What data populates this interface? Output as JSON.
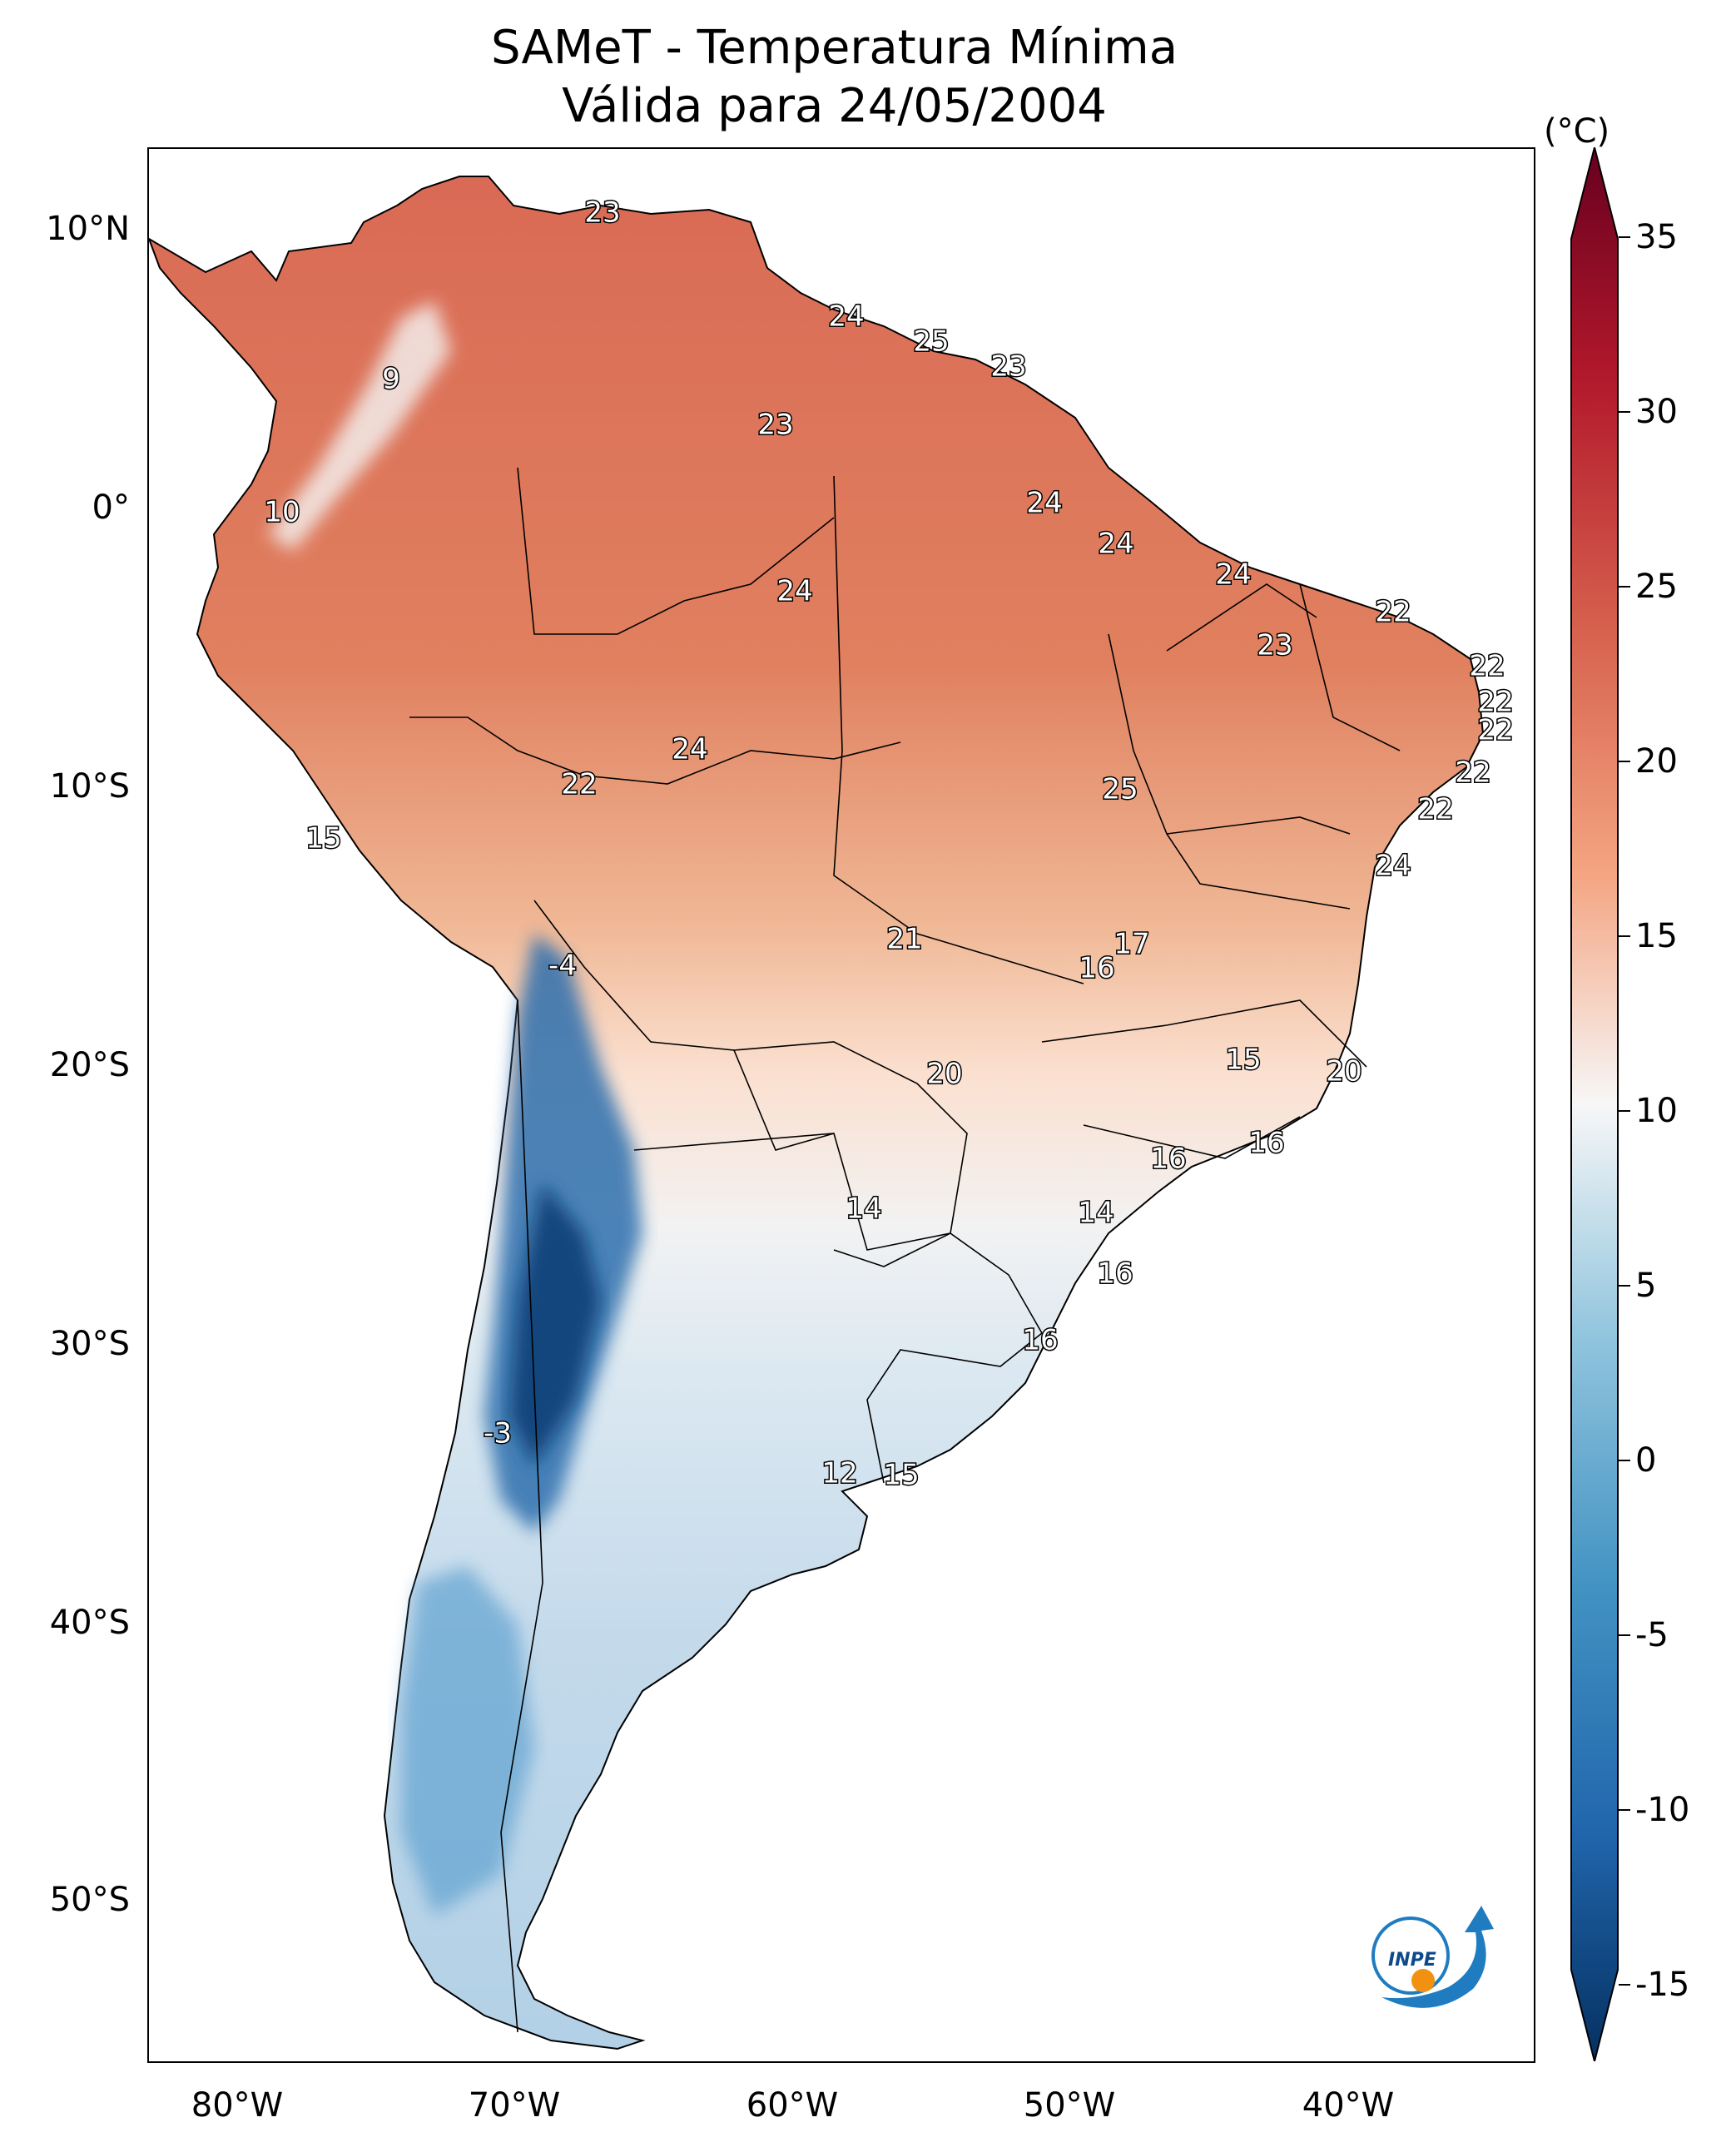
{
  "title": "SAMeT - Temperatura Mínima",
  "subtitle": "Válida para 24/05/2004",
  "latitude_labels": [
    "10°N",
    "0°",
    "10°S",
    "20°S",
    "30°S",
    "40°S",
    "50°S"
  ],
  "longitude_labels": [
    "80°W",
    "70°W",
    "60°W",
    "50°W",
    "40°W"
  ],
  "colorbar": {
    "unit": "(°C)",
    "ticks": [
      "35",
      "30",
      "25",
      "20",
      "15",
      "10",
      "5",
      "0",
      "-5",
      "-10",
      "-15"
    ],
    "range": [
      -17,
      37
    ],
    "colors": {
      "max": "#67001f",
      "high": "#d6604d",
      "mid": "#f7f7f7",
      "low": "#4393c3",
      "min": "#053061"
    }
  },
  "station_labels": [
    "23",
    "24",
    "25",
    "23",
    "9",
    "23",
    "10",
    "24",
    "24",
    "24",
    "24",
    "22",
    "23",
    "22",
    "22",
    "22",
    "24",
    "22",
    "22",
    "25",
    "15",
    "22",
    "24",
    "-4",
    "21",
    "17",
    "16",
    "15",
    "20",
    "16",
    "16",
    "20",
    "14",
    "14",
    "16",
    "16",
    "-3",
    "12",
    "15"
  ],
  "logo_text": "INPE"
}
